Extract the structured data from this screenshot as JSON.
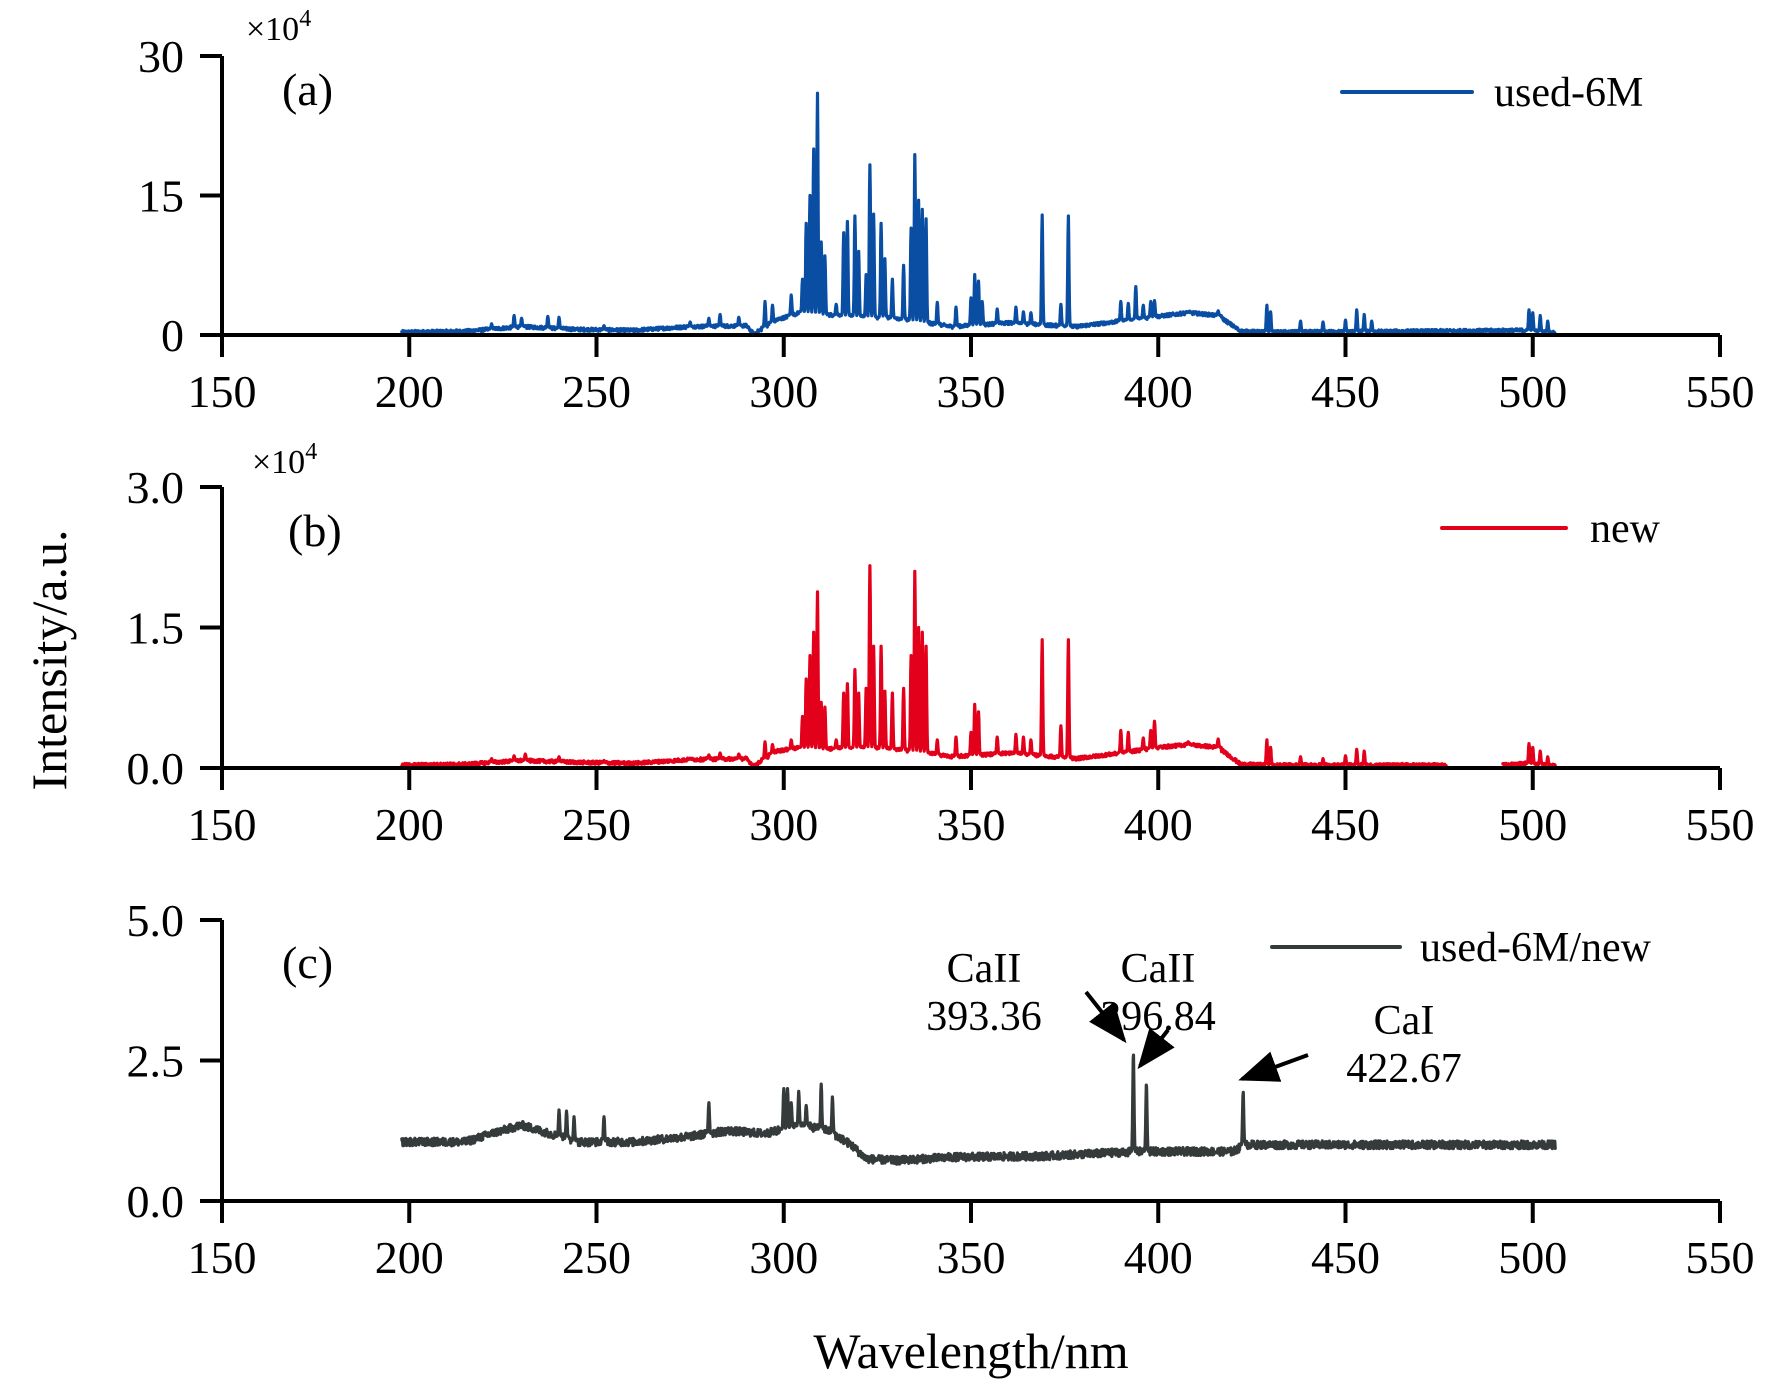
{
  "chart_data": [
    {
      "type": "line",
      "panel_label": "(a)",
      "multiplier": "×10",
      "multiplier_exp": "4",
      "xlabel": "Wavelength/nm",
      "ylabel": "Intensity/a.u.",
      "xlim": [
        150,
        550
      ],
      "ylim": [
        0,
        30
      ],
      "xticks": [
        "150",
        "200",
        "250",
        "300",
        "350",
        "400",
        "450",
        "500",
        "550"
      ],
      "xtick_values": [
        150,
        200,
        250,
        300,
        350,
        400,
        450,
        500,
        550
      ],
      "yticks": [
        "0",
        "15",
        "30"
      ],
      "ytick_values": [
        0,
        15,
        30
      ],
      "legend": {
        "label": "used-6M",
        "position": "top-right"
      },
      "series": [
        {
          "name": "used-6M",
          "color": "#0a4ea3",
          "x_range": [
            198,
            506
          ],
          "baseline": [
            [
              198,
              0.3
            ],
            [
              215,
              0.4
            ],
            [
              230,
              0.9
            ],
            [
              245,
              0.6
            ],
            [
              260,
              0.5
            ],
            [
              275,
              0.9
            ],
            [
              290,
              1.0
            ],
            [
              292,
              0.1
            ],
            [
              298,
              1.6
            ],
            [
              305,
              2.5
            ],
            [
              310,
              2.2
            ],
            [
              320,
              2.0
            ],
            [
              330,
              1.8
            ],
            [
              340,
              1.2
            ],
            [
              345,
              0.9
            ],
            [
              360,
              1.3
            ],
            [
              378,
              0.9
            ],
            [
              390,
              1.5
            ],
            [
              400,
              2.0
            ],
            [
              408,
              2.4
            ],
            [
              416,
              2.1
            ],
            [
              422,
              0.4
            ],
            [
              430,
              0.3
            ],
            [
              470,
              0.4
            ],
            [
              498,
              0.5
            ],
            [
              506,
              0.2
            ]
          ],
          "peaks": [
            [
              222,
              1.2
            ],
            [
              228,
              2.1
            ],
            [
              230,
              1.8
            ],
            [
              237,
              2.0
            ],
            [
              240,
              1.9
            ],
            [
              252,
              1.0
            ],
            [
              275,
              1.4
            ],
            [
              280,
              1.8
            ],
            [
              283,
              2.2
            ],
            [
              288,
              1.9
            ],
            [
              295,
              3.6
            ],
            [
              297,
              3.2
            ],
            [
              302,
              4.3
            ],
            [
              305,
              6.0
            ],
            [
              306,
              12.0
            ],
            [
              307,
              15.0
            ],
            [
              308,
              20.0
            ],
            [
              309,
              26.0
            ],
            [
              310,
              10.0
            ],
            [
              311,
              8.5
            ],
            [
              314,
              3.3
            ],
            [
              316,
              11.0
            ],
            [
              317,
              12.2
            ],
            [
              319,
              12.8
            ],
            [
              320,
              9.0
            ],
            [
              322,
              6.5
            ],
            [
              323,
              18.3
            ],
            [
              324,
              13.0
            ],
            [
              326,
              12.0
            ],
            [
              327,
              8.2
            ],
            [
              329,
              6.0
            ],
            [
              332,
              7.5
            ],
            [
              334,
              11.5
            ],
            [
              335,
              19.4
            ],
            [
              336,
              14.5
            ],
            [
              337,
              13.5
            ],
            [
              338,
              12.5
            ],
            [
              341,
              3.5
            ],
            [
              346,
              3.0
            ],
            [
              350,
              4.0
            ],
            [
              351,
              6.5
            ],
            [
              352,
              5.8
            ],
            [
              353,
              3.6
            ],
            [
              357,
              2.8
            ],
            [
              362,
              3.0
            ],
            [
              364,
              2.5
            ],
            [
              366,
              2.4
            ],
            [
              369,
              12.9
            ],
            [
              374,
              3.3
            ],
            [
              376,
              12.8
            ],
            [
              390,
              3.6
            ],
            [
              392,
              3.4
            ],
            [
              394,
              5.2
            ],
            [
              396,
              3.2
            ],
            [
              398,
              3.6
            ],
            [
              399,
              3.7
            ],
            [
              408,
              2.5
            ],
            [
              416,
              2.6
            ],
            [
              429,
              3.2
            ],
            [
              430,
              2.5
            ],
            [
              438,
              1.5
            ],
            [
              444,
              1.4
            ],
            [
              450,
              1.6
            ],
            [
              453,
              2.7
            ],
            [
              455,
              2.2
            ],
            [
              457,
              1.5
            ],
            [
              499,
              2.7
            ],
            [
              500,
              2.4
            ],
            [
              502,
              2.1
            ],
            [
              504,
              1.5
            ]
          ]
        }
      ]
    },
    {
      "type": "line",
      "panel_label": "(b)",
      "multiplier": "×10",
      "multiplier_exp": "4",
      "xlabel": "Wavelength/nm",
      "ylabel": "Intensity/a.u.",
      "xlim": [
        150,
        550
      ],
      "ylim": [
        0,
        3.0
      ],
      "xticks": [
        "150",
        "200",
        "250",
        "300",
        "350",
        "400",
        "450",
        "500",
        "550"
      ],
      "xtick_values": [
        150,
        200,
        250,
        300,
        350,
        400,
        450,
        500,
        550
      ],
      "yticks": [
        "0.0",
        "1.5",
        "3.0"
      ],
      "ytick_values": [
        0,
        1.5,
        3.0
      ],
      "legend": {
        "label": "new",
        "position": "top-right"
      },
      "series": [
        {
          "name": "new",
          "color": "#e3001b",
          "x_range": [
            198,
            506
          ],
          "gap": [
            477,
            492
          ],
          "baseline": [
            [
              198,
              0.03
            ],
            [
              215,
              0.04
            ],
            [
              230,
              0.08
            ],
            [
              245,
              0.06
            ],
            [
              260,
              0.05
            ],
            [
              275,
              0.09
            ],
            [
              290,
              0.1
            ],
            [
              292,
              0.02
            ],
            [
              298,
              0.18
            ],
            [
              305,
              0.22
            ],
            [
              310,
              0.2
            ],
            [
              320,
              0.22
            ],
            [
              330,
              0.2
            ],
            [
              340,
              0.15
            ],
            [
              345,
              0.12
            ],
            [
              360,
              0.16
            ],
            [
              378,
              0.1
            ],
            [
              390,
              0.16
            ],
            [
              400,
              0.22
            ],
            [
              408,
              0.25
            ],
            [
              416,
              0.22
            ],
            [
              422,
              0.04
            ],
            [
              430,
              0.03
            ],
            [
              470,
              0.03
            ],
            [
              477,
              0.03
            ],
            [
              492,
              0.03
            ],
            [
              498,
              0.05
            ],
            [
              506,
              0.02
            ]
          ],
          "peaks": [
            [
              222,
              0.1
            ],
            [
              228,
              0.13
            ],
            [
              231,
              0.15
            ],
            [
              240,
              0.12
            ],
            [
              252,
              0.08
            ],
            [
              275,
              0.1
            ],
            [
              280,
              0.14
            ],
            [
              283,
              0.16
            ],
            [
              288,
              0.15
            ],
            [
              295,
              0.28
            ],
            [
              297,
              0.25
            ],
            [
              302,
              0.3
            ],
            [
              305,
              0.55
            ],
            [
              306,
              0.95
            ],
            [
              307,
              1.2
            ],
            [
              308,
              1.45
            ],
            [
              309,
              1.88
            ],
            [
              310,
              0.7
            ],
            [
              311,
              0.65
            ],
            [
              314,
              0.3
            ],
            [
              316,
              0.8
            ],
            [
              317,
              0.9
            ],
            [
              319,
              1.05
            ],
            [
              320,
              0.8
            ],
            [
              322,
              0.85
            ],
            [
              323,
              2.16
            ],
            [
              324,
              1.3
            ],
            [
              326,
              1.3
            ],
            [
              327,
              0.82
            ],
            [
              329,
              0.8
            ],
            [
              332,
              0.85
            ],
            [
              334,
              1.2
            ],
            [
              335,
              2.1
            ],
            [
              336,
              1.5
            ],
            [
              337,
              1.45
            ],
            [
              338,
              1.3
            ],
            [
              341,
              0.3
            ],
            [
              346,
              0.33
            ],
            [
              350,
              0.38
            ],
            [
              351,
              0.68
            ],
            [
              352,
              0.6
            ],
            [
              357,
              0.33
            ],
            [
              362,
              0.36
            ],
            [
              364,
              0.33
            ],
            [
              366,
              0.3
            ],
            [
              369,
              1.37
            ],
            [
              374,
              0.45
            ],
            [
              376,
              1.37
            ],
            [
              390,
              0.4
            ],
            [
              392,
              0.38
            ],
            [
              396,
              0.32
            ],
            [
              398,
              0.4
            ],
            [
              399,
              0.5
            ],
            [
              408,
              0.28
            ],
            [
              416,
              0.31
            ],
            [
              429,
              0.3
            ],
            [
              430,
              0.22
            ],
            [
              438,
              0.12
            ],
            [
              444,
              0.1
            ],
            [
              450,
              0.13
            ],
            [
              453,
              0.2
            ],
            [
              455,
              0.18
            ],
            [
              499,
              0.26
            ],
            [
              500,
              0.22
            ],
            [
              502,
              0.18
            ],
            [
              504,
              0.12
            ]
          ]
        }
      ]
    },
    {
      "type": "line",
      "panel_label": "(c)",
      "xlabel": "Wavelength/nm",
      "ylabel": "Intensity/a.u.",
      "xlim": [
        150,
        550
      ],
      "ylim": [
        0,
        5.0
      ],
      "xticks": [
        "150",
        "200",
        "250",
        "300",
        "350",
        "400",
        "450",
        "500",
        "550"
      ],
      "xtick_values": [
        150,
        200,
        250,
        300,
        350,
        400,
        450,
        500,
        550
      ],
      "yticks": [
        "0.0",
        "2.5",
        "5.0"
      ],
      "ytick_values": [
        0,
        2.5,
        5.0
      ],
      "legend": {
        "label": "used-6M/new",
        "position": "top-right"
      },
      "annotations": [
        {
          "line1": "CaII",
          "line2": "393.36",
          "x": 393.36,
          "y": 2.65
        },
        {
          "line1": "CaII",
          "line2": "396.84",
          "x": 396.84,
          "y": 2.1
        },
        {
          "line1": "CaI",
          "line2": "422.67",
          "x": 422.67,
          "y": 1.95
        }
      ],
      "series": [
        {
          "name": "used-6M/new",
          "color": "#353b3b",
          "x_range": [
            198,
            506
          ],
          "noise": 0.07,
          "baseline": [
            [
              198,
              1.05
            ],
            [
              215,
              1.05
            ],
            [
              222,
              1.2
            ],
            [
              230,
              1.35
            ],
            [
              235,
              1.25
            ],
            [
              245,
              1.05
            ],
            [
              260,
              1.05
            ],
            [
              275,
              1.15
            ],
            [
              285,
              1.25
            ],
            [
              295,
              1.2
            ],
            [
              305,
              1.35
            ],
            [
              312,
              1.25
            ],
            [
              318,
              1.0
            ],
            [
              322,
              0.75
            ],
            [
              330,
              0.72
            ],
            [
              345,
              0.78
            ],
            [
              370,
              0.8
            ],
            [
              385,
              0.85
            ],
            [
              395,
              0.88
            ],
            [
              420,
              0.88
            ],
            [
              423,
              1.0
            ],
            [
              450,
              1.0
            ],
            [
              480,
              1.0
            ],
            [
              506,
              1.0
            ]
          ],
          "peaks": [
            [
              240,
              1.62
            ],
            [
              242,
              1.6
            ],
            [
              244,
              1.5
            ],
            [
              252,
              1.5
            ],
            [
              280,
              1.75
            ],
            [
              300,
              2.0
            ],
            [
              301,
              2.0
            ],
            [
              302,
              1.75
            ],
            [
              304,
              1.95
            ],
            [
              306,
              1.7
            ],
            [
              310,
              2.08
            ],
            [
              313,
              1.85
            ],
            [
              393.36,
              2.65
            ],
            [
              396.84,
              2.1
            ],
            [
              422.67,
              1.95
            ]
          ]
        }
      ]
    }
  ],
  "figure": {
    "ylabel": "Intensity/a.u.",
    "xlabel": "Wavelength/nm"
  }
}
